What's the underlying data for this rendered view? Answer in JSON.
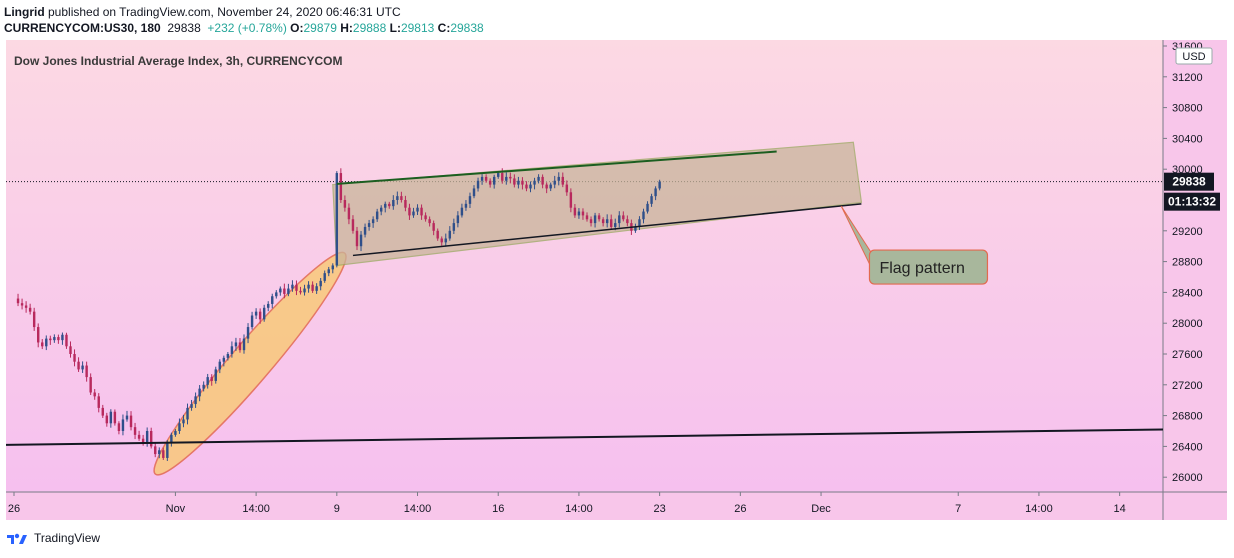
{
  "header": {
    "author": "Lingrid",
    "published": " published on TradingView.com, November 24, 2020 06:46:31 UTC",
    "symbol": "CURRENCYCOM:US30, 180",
    "last": "29838",
    "change": "+232 (+0.78%)",
    "o_label": "O:",
    "o": "29879",
    "h_label": "H:",
    "h": "29888",
    "l_label": "L:",
    "l": "29813",
    "c_label": "C:",
    "c": "29838"
  },
  "footer": {
    "brand": "TradingView"
  },
  "colors": {
    "bg_top": "#fcd9e3",
    "bg_bottom": "#f6c0ef",
    "up": "#2f4f8a",
    "down": "#b8295d",
    "ellipse_fill": "#f9c97a",
    "ellipse_stroke": "#e26a4f",
    "flag_fill": "#c9b59a",
    "flag_stroke": "#9aa860",
    "callout_fill": "#a8b79c",
    "callout_stroke": "#e26a4f",
    "price_label_bg": "#131722"
  },
  "chart_data": {
    "type": "candlestick",
    "title": "Dow Jones Industrial Average Index, 3h, CURRENCYCOM",
    "currency": "USD",
    "ylim": [
      25600,
      31600
    ],
    "y_ticks": [
      31600,
      31200,
      30800,
      30400,
      30000,
      29600,
      29200,
      28800,
      28400,
      28000,
      27600,
      27200,
      26800,
      26400,
      26000
    ],
    "y_tick_labels": [
      "31600",
      "31200",
      "30800",
      "30400",
      "30000",
      "",
      "29200",
      "28800",
      "28400",
      "28000",
      "27600",
      "27200",
      "26800",
      "26400",
      "26000"
    ],
    "x_ticks": [
      {
        "bar": 0,
        "label": "26"
      },
      {
        "bar": 40,
        "label": "Nov"
      },
      {
        "bar": 60,
        "label": "14:00"
      },
      {
        "bar": 80,
        "label": "9"
      },
      {
        "bar": 100,
        "label": "14:00"
      },
      {
        "bar": 120,
        "label": "16"
      },
      {
        "bar": 140,
        "label": "14:00"
      },
      {
        "bar": 160,
        "label": "23"
      },
      {
        "bar": 180,
        "label": "26"
      },
      {
        "bar": 200,
        "label": "Dec"
      },
      {
        "bar": 234,
        "label": "7"
      },
      {
        "bar": 254,
        "label": "14:00"
      },
      {
        "bar": 274,
        "label": "14"
      }
    ],
    "bar_count_range": [
      0,
      284
    ],
    "current_price": 29838,
    "current_price_label": "29838",
    "countdown_label": "01:13:32",
    "closes": [
      28320,
      28260,
      28230,
      28200,
      28150,
      27950,
      27750,
      27700,
      27800,
      27780,
      27820,
      27780,
      27850,
      27700,
      27600,
      27500,
      27400,
      27450,
      27300,
      27100,
      27050,
      26900,
      26800,
      26700,
      26850,
      26700,
      26600,
      26750,
      26800,
      26650,
      26550,
      26500,
      26450,
      26600,
      26400,
      26300,
      26350,
      26250,
      26450,
      26550,
      26600,
      26700,
      26750,
      26900,
      26950,
      27050,
      27150,
      27200,
      27300,
      27250,
      27400,
      27500,
      27550,
      27600,
      27700,
      27750,
      27650,
      27800,
      27950,
      28100,
      28150,
      28050,
      28200,
      28250,
      28350,
      28400,
      28450,
      28380,
      28450,
      28500,
      28420,
      28400,
      28450,
      28500,
      28420,
      28480,
      28550,
      28650,
      28700,
      28750,
      29950,
      29600,
      29500,
      29350,
      29200,
      29000,
      29150,
      29250,
      29300,
      29350,
      29450,
      29500,
      29550,
      29520,
      29600,
      29650,
      29600,
      29500,
      29400,
      29450,
      29500,
      29400,
      29350,
      29300,
      29200,
      29100,
      29050,
      29100,
      29200,
      29300,
      29400,
      29500,
      29550,
      29650,
      29750,
      29850,
      29900,
      29850,
      29800,
      29900,
      29950,
      29850,
      29900,
      29880,
      29800,
      29850,
      29800,
      29750,
      29800,
      29850,
      29900,
      29800,
      29750,
      29800,
      29850,
      29900,
      29800,
      29700,
      29500,
      29400,
      29450,
      29400,
      29350,
      29300,
      29400,
      29350,
      29300,
      29350,
      29250,
      29300,
      29400,
      29350,
      29300,
      29200,
      29250,
      29350,
      29450,
      29550,
      29650,
      29750,
      29838
    ]
  },
  "annotations": {
    "callout": "Flag pattern"
  }
}
